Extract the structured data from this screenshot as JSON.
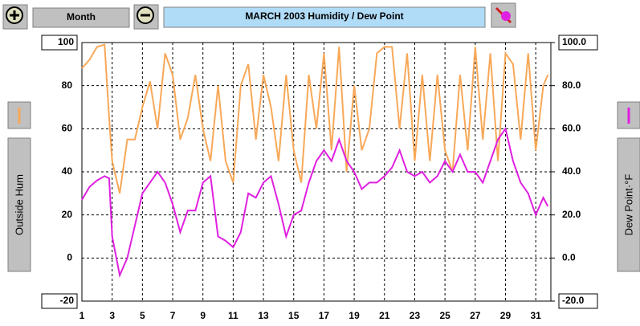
{
  "chart_data": {
    "type": "line",
    "title": "MARCH  2003    Humidity  /  Dew Point",
    "period": "Month",
    "x": [
      1,
      1.5,
      2,
      2.5,
      2.8,
      3,
      3.5,
      4,
      4.5,
      5,
      5.5,
      6,
      6.5,
      7,
      7.5,
      8,
      8.5,
      9,
      9.5,
      10,
      10.5,
      11,
      11.5,
      12,
      12.5,
      13,
      13.5,
      14,
      14.5,
      15,
      15.5,
      16,
      16.5,
      17,
      17.5,
      18,
      18.5,
      19,
      19.5,
      20,
      20.5,
      21,
      21.5,
      22,
      22.5,
      23,
      23.5,
      24,
      24.5,
      25,
      25.5,
      26,
      26.5,
      27,
      27.5,
      28,
      28.5,
      29,
      29.5,
      30,
      30.5,
      31,
      31.5,
      31.8
    ],
    "series": [
      {
        "name": "Outside Hum",
        "color": "#f8a858",
        "axis": "y",
        "values": [
          88,
          92,
          98,
          99,
          65,
          45,
          30,
          55,
          55,
          70,
          82,
          60,
          95,
          85,
          55,
          65,
          85,
          60,
          45,
          80,
          45,
          35,
          80,
          90,
          55,
          85,
          70,
          45,
          85,
          50,
          35,
          85,
          60,
          95,
          50,
          98,
          40,
          80,
          50,
          60,
          95,
          98,
          98,
          60,
          95,
          45,
          85,
          45,
          85,
          50,
          40,
          85,
          50,
          98,
          55,
          95,
          45,
          95,
          90,
          55,
          95,
          50,
          80,
          85
        ]
      },
      {
        "name": "Dew Point·°F",
        "color": "#e020e0",
        "axis": "y2",
        "values": [
          27,
          33,
          36,
          38,
          37,
          10,
          -8,
          0,
          15,
          30,
          35,
          40,
          35,
          25,
          12,
          22,
          22,
          35,
          38,
          10,
          8,
          5,
          12,
          30,
          28,
          35,
          38,
          25,
          10,
          20,
          22,
          35,
          45,
          50,
          45,
          55,
          45,
          40,
          32,
          35,
          35,
          38,
          42,
          50,
          40,
          38,
          40,
          35,
          38,
          45,
          40,
          48,
          40,
          40,
          35,
          45,
          55,
          60,
          45,
          35,
          30,
          20,
          28,
          24
        ]
      }
    ],
    "xlim": [
      1,
      32
    ],
    "xticks": [
      1,
      3,
      5,
      7,
      9,
      11,
      13,
      15,
      17,
      19,
      21,
      23,
      25,
      27,
      29,
      31
    ],
    "ylim": [
      -20,
      100
    ],
    "yticks": [
      -20,
      0,
      20,
      40,
      60,
      80,
      100
    ],
    "y2lim": [
      -20,
      100
    ],
    "y2ticks": [
      {
        "value": -20,
        "label": "-20.0"
      },
      {
        "value": 0,
        "label": "0.0"
      },
      {
        "value": 20,
        "label": "20.0"
      },
      {
        "value": 40,
        "label": "40.0"
      },
      {
        "value": 60,
        "label": "60.0"
      },
      {
        "value": 80,
        "label": "80.0"
      },
      {
        "value": 100,
        "label": "100.0"
      }
    ],
    "grid": true
  }
}
